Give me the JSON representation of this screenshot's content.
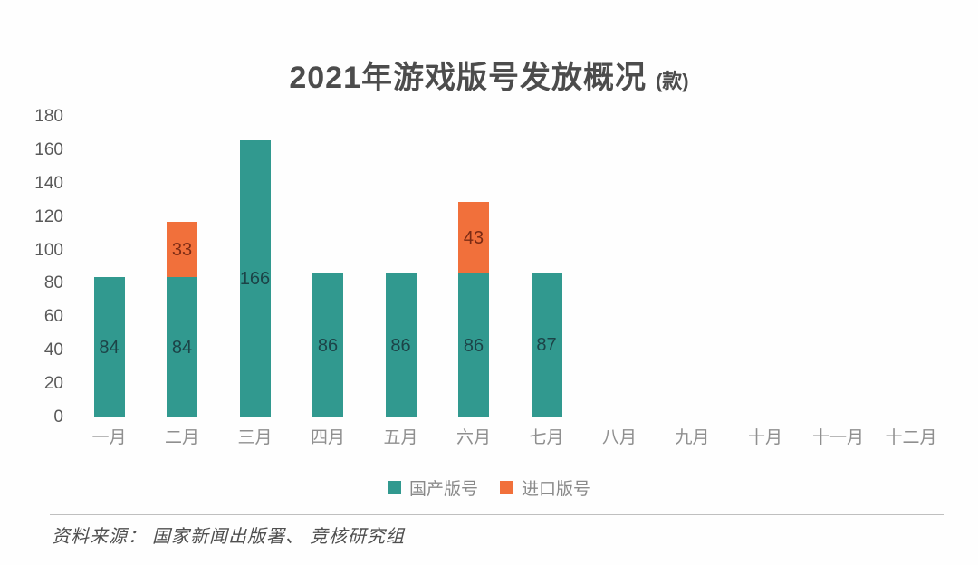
{
  "title": {
    "main": "2021年游戏版号发放概况",
    "unit": "(款)"
  },
  "chart_data": {
    "type": "bar",
    "stacked": true,
    "title": "2021年游戏版号发放概况 (款)",
    "xlabel": "",
    "ylabel": "",
    "ylim": [
      0,
      180
    ],
    "yticks": [
      0,
      20,
      40,
      60,
      80,
      100,
      120,
      140,
      160,
      180
    ],
    "grid": false,
    "legend_position": "bottom",
    "categories": [
      "一月",
      "二月",
      "三月",
      "四月",
      "五月",
      "六月",
      "七月",
      "八月",
      "九月",
      "十月",
      "十一月",
      "十二月"
    ],
    "series": [
      {
        "name": "国产版号",
        "color": "#31998f",
        "label_color": "#1c4347",
        "values": [
          84,
          84,
          166,
          86,
          86,
          86,
          87,
          null,
          null,
          null,
          null,
          null
        ]
      },
      {
        "name": "进口版号",
        "color": "#f1703b",
        "label_color": "#7b2b14",
        "values": [
          null,
          33,
          null,
          null,
          null,
          43,
          null,
          null,
          null,
          null,
          null,
          null
        ]
      }
    ]
  },
  "legend": {
    "items": [
      {
        "label": "国产版号",
        "color": "#31998f"
      },
      {
        "label": "进口版号",
        "color": "#f1703b"
      }
    ]
  },
  "footer": {
    "source": "资料来源： 国家新闻出版署、 竞核研究组"
  },
  "colors": {
    "domestic_teal": "#31998f",
    "imported_orange": "#f1703b",
    "title_text": "#4c4c4c",
    "axis_tick_text": "#595959",
    "month_label_text": "#8f8f8f",
    "legend_text": "#8a8a8a",
    "source_text": "#4f4f4f",
    "axis_line": "#d6d6d6",
    "divider_line": "#bfbfbf"
  }
}
